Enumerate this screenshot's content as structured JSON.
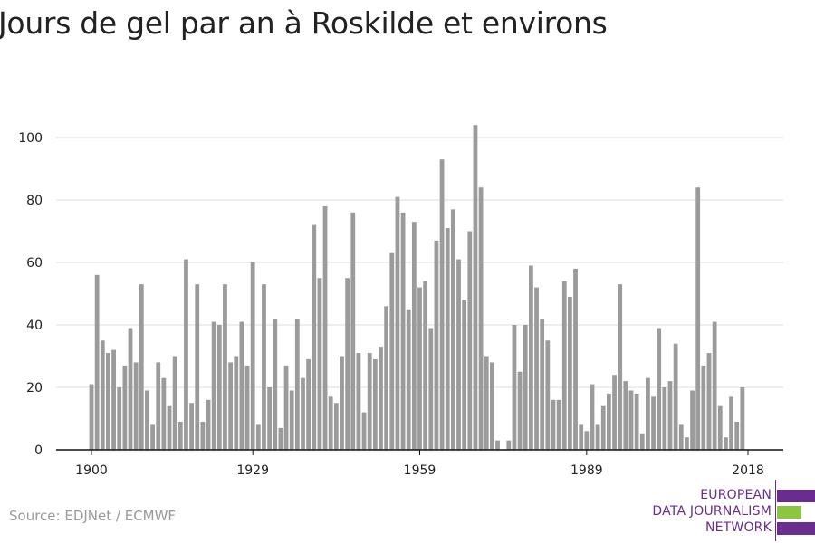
{
  "title": "Jours de gel par an à Roskilde et environs",
  "source": "Source: EDJNet / ECMWF",
  "logo": {
    "lines": [
      "EUROPEAN",
      "DATA JOURNALISM",
      "NETWORK"
    ],
    "colors": {
      "purple": "#6a2c8e",
      "green": "#8cc63f"
    }
  },
  "chart_data": {
    "type": "bar",
    "title": "Jours de gel par an à Roskilde et environs",
    "xlabel": "",
    "ylabel": "",
    "ylim": [
      0,
      105
    ],
    "yticks": [
      0,
      20,
      40,
      60,
      80,
      100
    ],
    "xticks": [
      1900,
      1929,
      1959,
      1989,
      2018
    ],
    "bar_color": "#9b9b9b",
    "grid": true,
    "years": [
      1900,
      1901,
      1902,
      1903,
      1904,
      1905,
      1906,
      1907,
      1908,
      1909,
      1910,
      1911,
      1912,
      1913,
      1914,
      1915,
      1916,
      1917,
      1918,
      1919,
      1920,
      1921,
      1922,
      1923,
      1924,
      1925,
      1926,
      1927,
      1928,
      1929,
      1930,
      1931,
      1932,
      1933,
      1934,
      1935,
      1936,
      1937,
      1938,
      1939,
      1940,
      1941,
      1942,
      1943,
      1944,
      1945,
      1946,
      1947,
      1948,
      1949,
      1950,
      1951,
      1952,
      1953,
      1954,
      1955,
      1956,
      1957,
      1958,
      1959,
      1960,
      1961,
      1962,
      1963,
      1964,
      1965,
      1966,
      1967,
      1968,
      1969,
      1970,
      1971,
      1972,
      1973,
      1974,
      1975,
      1976,
      1977,
      1978,
      1979,
      1980,
      1981,
      1982,
      1983,
      1984,
      1985,
      1986,
      1987,
      1988,
      1989,
      1990,
      1991,
      1992,
      1993,
      1994,
      1995,
      1996,
      1997,
      1998,
      1999,
      2000,
      2001,
      2002,
      2003,
      2004,
      2005,
      2006,
      2007,
      2008,
      2009,
      2010,
      2011,
      2012,
      2013,
      2014,
      2015,
      2016,
      2017,
      2018
    ],
    "values": [
      21,
      56,
      35,
      31,
      32,
      20,
      27,
      39,
      28,
      53,
      19,
      8,
      28,
      23,
      14,
      30,
      9,
      61,
      15,
      53,
      9,
      16,
      41,
      40,
      53,
      28,
      30,
      41,
      27,
      60,
      8,
      53,
      20,
      42,
      7,
      27,
      19,
      42,
      23,
      29,
      72,
      55,
      78,
      17,
      15,
      30,
      55,
      76,
      31,
      12,
      31,
      29,
      33,
      46,
      63,
      81,
      76,
      45,
      73,
      52,
      54,
      39,
      67,
      93,
      71,
      77,
      61,
      48,
      70,
      104,
      84,
      30,
      28,
      3,
      0,
      3,
      40,
      25,
      40,
      59,
      52,
      42,
      35,
      16,
      16,
      54,
      49,
      58,
      8,
      6,
      21,
      8,
      14,
      18,
      24,
      53,
      22,
      19,
      18,
      5,
      23,
      17,
      39,
      20,
      22,
      34,
      8,
      4,
      19,
      84,
      27,
      31,
      41,
      14,
      4,
      17,
      9,
      20,
      0
    ]
  }
}
